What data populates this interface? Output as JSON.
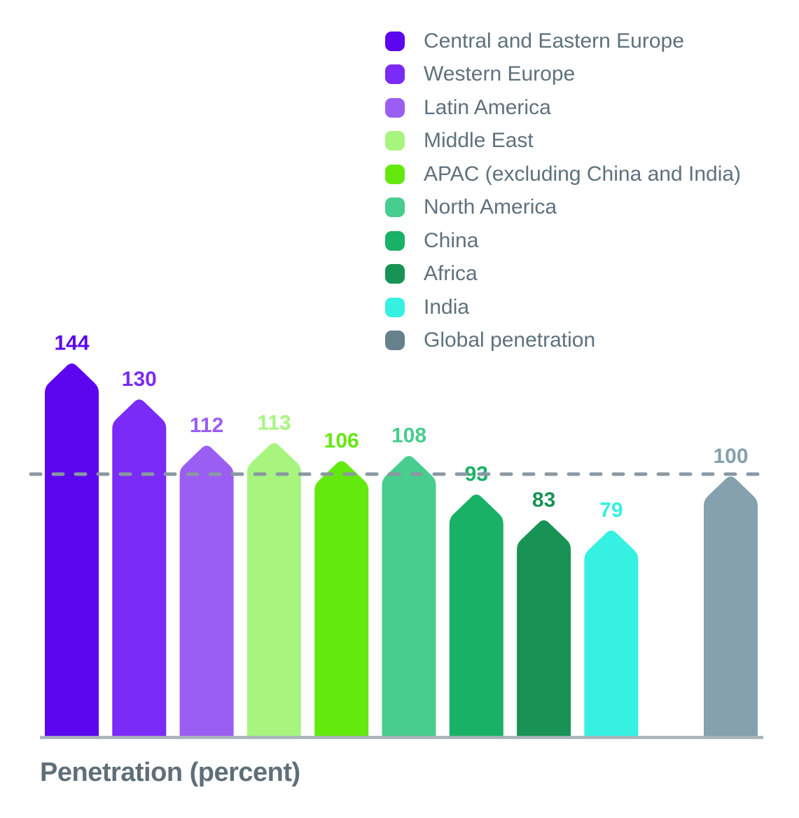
{
  "chart_data": {
    "type": "bar",
    "title": "",
    "xlabel": "Penetration (percent)",
    "ylabel": "",
    "categories": [
      "Central and Eastern Europe",
      "Western Europe",
      "Latin America",
      "Middle East",
      "APAC (excluding China and India)",
      "North America",
      "China",
      "Africa",
      "India",
      "Global penetration"
    ],
    "values": [
      144,
      130,
      112,
      113,
      106,
      108,
      93,
      83,
      79,
      100
    ],
    "colors": [
      "#5B06EF",
      "#7B2BF7",
      "#9B5EF3",
      "#A7F57F",
      "#64E90E",
      "#47CD8E",
      "#19B166",
      "#189355",
      "#36F1E1",
      "#84A1AD"
    ],
    "legend_swatch_colors": [
      "#5B06EF",
      "#7B2BF7",
      "#9B5EF3",
      "#A7F57F",
      "#64E90E",
      "#47CD8E",
      "#19B166",
      "#189355",
      "#36F1E1",
      "#66808C"
    ],
    "value_labels_shown": true,
    "bar_shape": "pointed",
    "grid": false,
    "legend_position": "top-right",
    "ylim": [
      0,
      150
    ],
    "reference_line": {
      "value": 100,
      "style": "dashed",
      "color": "#8A98A1",
      "corresponds_to": "Global penetration"
    },
    "axis_line_color": "#A9B3BA",
    "text_color": "#5E717D"
  }
}
